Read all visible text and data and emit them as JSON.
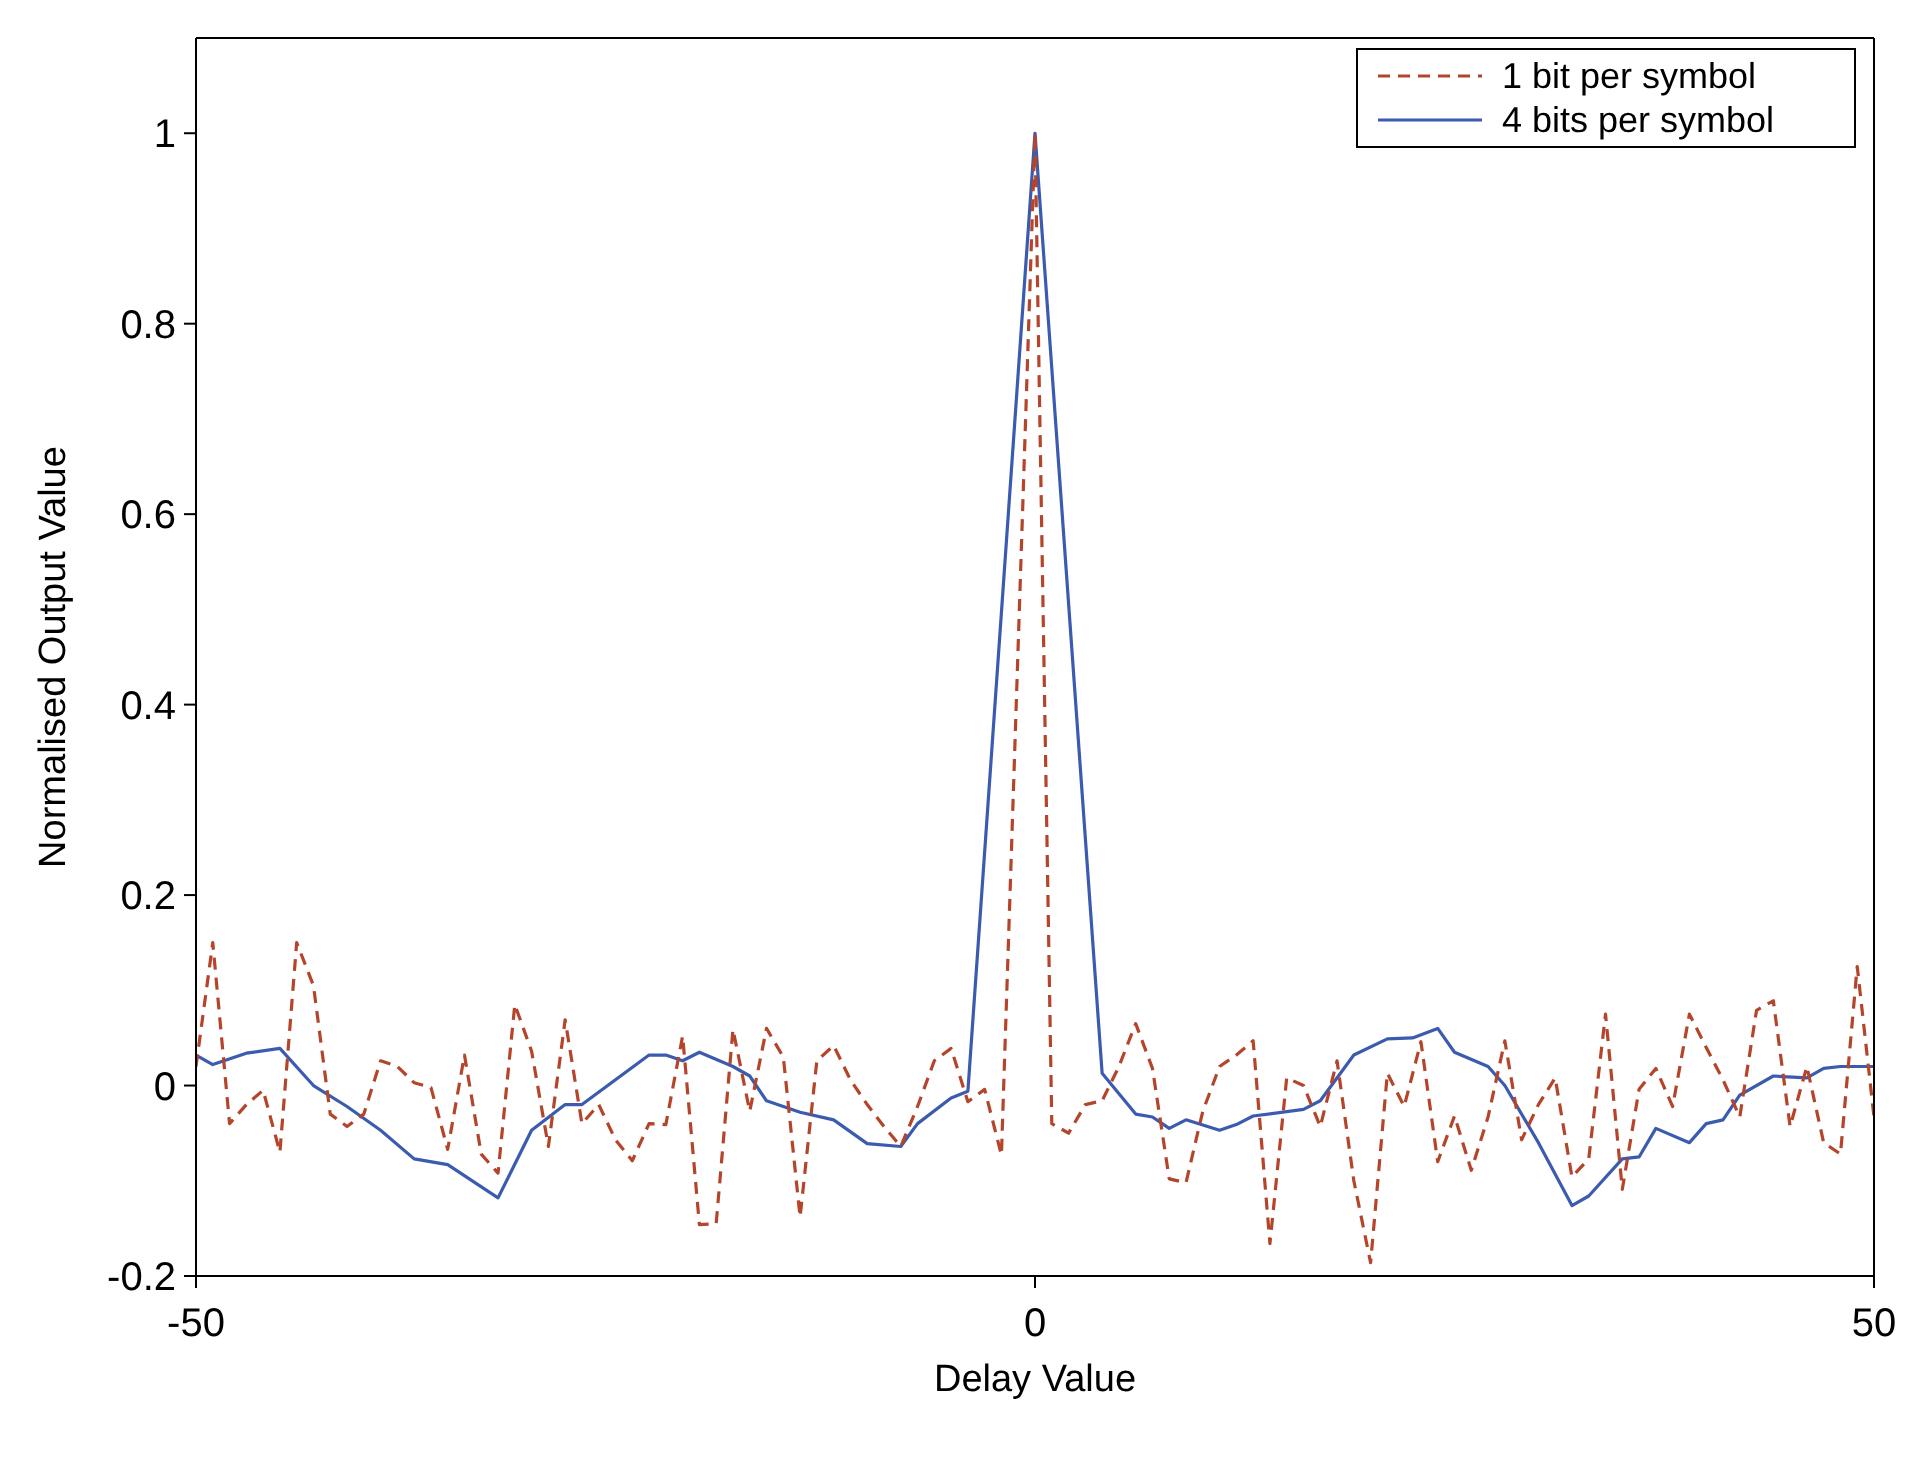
{
  "chart_data": {
    "type": "line",
    "xlabel": "Delay Value",
    "ylabel": "Normalised Output Value",
    "xlim": [
      -50,
      50
    ],
    "xticks": [
      -50,
      0,
      50
    ],
    "ylim": [
      -0.2,
      1.1
    ],
    "yticks": [
      -0.2,
      0,
      0.2,
      0.4,
      0.6,
      0.8,
      1
    ],
    "grid": false,
    "legend": "top right",
    "marker": "none",
    "series": [
      {
        "name": "1 bit per symbol",
        "color": "#b5452a",
        "line_style": "dashed",
        "x": [
          -50,
          -49,
          -48,
          -47,
          -46,
          -45,
          -44,
          -43,
          -42,
          -41,
          -40,
          -39,
          -38,
          -37,
          -36,
          -35,
          -34,
          -33,
          -32,
          -31,
          -30,
          -29,
          -28,
          -27,
          -26,
          -25,
          -24,
          -23,
          -22,
          -21,
          -20,
          -19,
          -18,
          -17,
          -16,
          -15,
          -14,
          -13,
          -12,
          -11,
          -10,
          -9,
          -8,
          -7,
          -6,
          -5,
          -4,
          -3,
          -2,
          0,
          1,
          2,
          3,
          4,
          5,
          6,
          7,
          8,
          9,
          10,
          11,
          12,
          13,
          14,
          15,
          16,
          17,
          18,
          19,
          20,
          21,
          22,
          23,
          24,
          25,
          26,
          27,
          28,
          29,
          30,
          31,
          32,
          33,
          34,
          35,
          36,
          37,
          38,
          39,
          40,
          41,
          42,
          43,
          44,
          45,
          46,
          47,
          48,
          49,
          50
        ],
        "values": [
          0.02,
          0.15,
          -0.04,
          -0.02,
          -0.005,
          -0.07,
          0.15,
          0.105,
          -0.03,
          -0.043,
          -0.03,
          0.026,
          0.02,
          0.003,
          -0.002,
          -0.067,
          0.032,
          -0.072,
          -0.092,
          0.085,
          0.036,
          -0.064,
          0.069,
          -0.04,
          -0.02,
          -0.057,
          -0.079,
          -0.04,
          -0.041,
          0.052,
          -0.146,
          -0.145,
          0.059,
          -0.027,
          0.06,
          0.03,
          -0.138,
          0.026,
          0.042,
          0.006,
          -0.02,
          -0.043,
          -0.064,
          -0.022,
          0.026,
          0.039,
          -0.017,
          -0.004,
          -0.073,
          1,
          -0.04,
          -0.05,
          -0.02,
          -0.016,
          0.02,
          0.065,
          0.018,
          -0.098,
          -0.102,
          -0.027,
          0.02,
          0.032,
          0.047,
          -0.166,
          0.008,
          0,
          -0.043,
          0.026,
          -0.1,
          -0.186,
          0.013,
          -0.022,
          0.046,
          -0.08,
          -0.032,
          -0.089,
          -0.033,
          0.047,
          -0.057,
          -0.02,
          0.008,
          -0.096,
          -0.077,
          0.075,
          -0.109,
          -0.004,
          0.018,
          -0.022,
          0.075,
          0.04,
          0.006,
          -0.033,
          0.079,
          0.089,
          -0.043,
          0.02,
          -0.06,
          -0.072,
          0.125,
          -0.033
        ]
      },
      {
        "name": "4 bits per symbol",
        "color": "#3a5bb0",
        "line_style": "solid",
        "x": [
          -50,
          -49,
          -47,
          -45,
          -43,
          -41,
          -39,
          -37,
          -35,
          -32,
          -30,
          -28,
          -27,
          -25,
          -23,
          -22,
          -21,
          -20,
          -18,
          -17,
          -16,
          -14,
          -12,
          -10,
          -8,
          -7,
          -5,
          -4,
          0,
          4,
          6,
          7,
          8,
          9,
          11,
          12,
          13,
          16,
          17,
          19,
          21,
          22.5,
          24,
          25,
          27,
          28,
          30,
          32,
          33,
          35,
          36,
          37,
          39,
          40,
          41,
          42,
          44,
          46,
          47,
          48,
          50
        ],
        "values": [
          0.032,
          0.022,
          0.034,
          0.039,
          0,
          -0.022,
          -0.047,
          -0.077,
          -0.083,
          -0.118,
          -0.047,
          -0.02,
          -0.02,
          0.006,
          0.032,
          0.032,
          0.026,
          0.035,
          0.02,
          0.01,
          -0.016,
          -0.028,
          -0.036,
          -0.061,
          -0.064,
          -0.04,
          -0.013,
          -0.006,
          1,
          0.013,
          -0.03,
          -0.033,
          -0.045,
          -0.036,
          -0.047,
          -0.041,
          -0.032,
          -0.025,
          -0.016,
          0.032,
          0.049,
          0.05,
          0.06,
          0.035,
          0.02,
          0,
          -0.06,
          -0.126,
          -0.116,
          -0.077,
          -0.075,
          -0.045,
          -0.06,
          -0.04,
          -0.036,
          -0.01,
          0.01,
          0.008,
          0.018,
          0.02,
          0.02
        ]
      }
    ]
  }
}
